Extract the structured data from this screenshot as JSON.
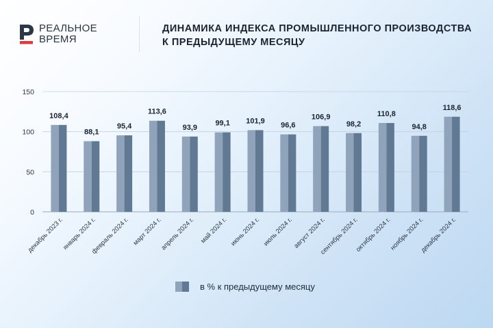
{
  "brand": {
    "line1": "РЕАЛЬНОЕ",
    "line2": "ВРЕМЯ",
    "mark_color": "#2b3646",
    "accent_color": "#e03a3e"
  },
  "header": {
    "title_line1": "ДИНАМИКА ИНДЕКСА ПРОМЫШЛЕННОГО ПРОИЗВОДСТВА",
    "title_line2": "К ПРЕДЫДУЩЕМУ МЕСЯЦУ"
  },
  "legend": {
    "label": "в % к предыдущему месяцу"
  },
  "chart_data": {
    "type": "bar",
    "categories": [
      "декабрь 2023 г.",
      "январь 2024 г.",
      "февраль 2024 г.",
      "март 2024 г.",
      "апрель 2024 г.",
      "май 2024 г.",
      "июнь 2024 г.",
      "июль 2024 г.",
      "август 2024 г.",
      "сентябрь 2024 г.",
      "октябрь 2024 г.",
      "ноябрь 2024 г.",
      "декабрь 2024 г."
    ],
    "series": [
      {
        "name": "в % к предыдущему месяцу",
        "values": [
          108.4,
          88.1,
          95.4,
          113.6,
          93.9,
          99.1,
          101.9,
          96.6,
          106.9,
          98.2,
          110.8,
          94.8,
          118.6
        ],
        "labels": [
          "108,4",
          "88,1",
          "95,4",
          "113,6",
          "93,9",
          "99,1",
          "101,9",
          "96,6",
          "106,9",
          "98,2",
          "110,8",
          "94,8",
          "118,6"
        ],
        "color_light": "#8fa3bb",
        "color_dark": "#627993"
      }
    ],
    "y_ticks": [
      "0",
      "50",
      "100",
      "150"
    ],
    "y_tick_values": [
      0,
      50,
      100,
      150
    ],
    "ylim": [
      0,
      150
    ],
    "grid": true,
    "legend_position": "bottom-center"
  }
}
